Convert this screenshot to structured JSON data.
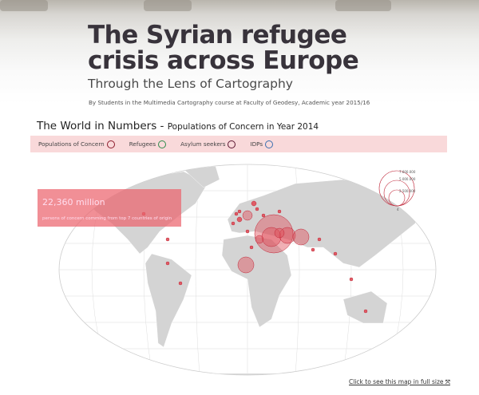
{
  "header": {
    "title": "The Syrian refugee crisis across Europe",
    "subtitle": "Through the Lens of Cartography",
    "byline": "By Students in the Multimedia Cartography course at Faculty of Geodesy, Academic year 2015/16"
  },
  "section": {
    "title": "The World in Numbers - ",
    "subtitle": "Populations of Concern in Year 2014"
  },
  "legend": {
    "items": [
      {
        "label": "Populations of Concern",
        "color": "#8b1a2b"
      },
      {
        "label": "Refugees",
        "color": "#2e8b4a"
      },
      {
        "label": "Asylum seekers",
        "color": "#5a1530"
      },
      {
        "label": "IDPs",
        "color": "#3a6fb0"
      }
    ]
  },
  "stat": {
    "value": "22,360 million",
    "caption": "persons of concern comming from top 7 countries of origin"
  },
  "size_legend": {
    "labels": [
      "7.600.000",
      "5.000.000",
      "2.500.000",
      "4"
    ]
  },
  "colors": {
    "bubble": "#e0505a",
    "land": "#d4d4d4",
    "accent": "#c0283a"
  },
  "link": {
    "label": "Click to see this map in full size",
    "icon": "fullscreen-icon"
  }
}
